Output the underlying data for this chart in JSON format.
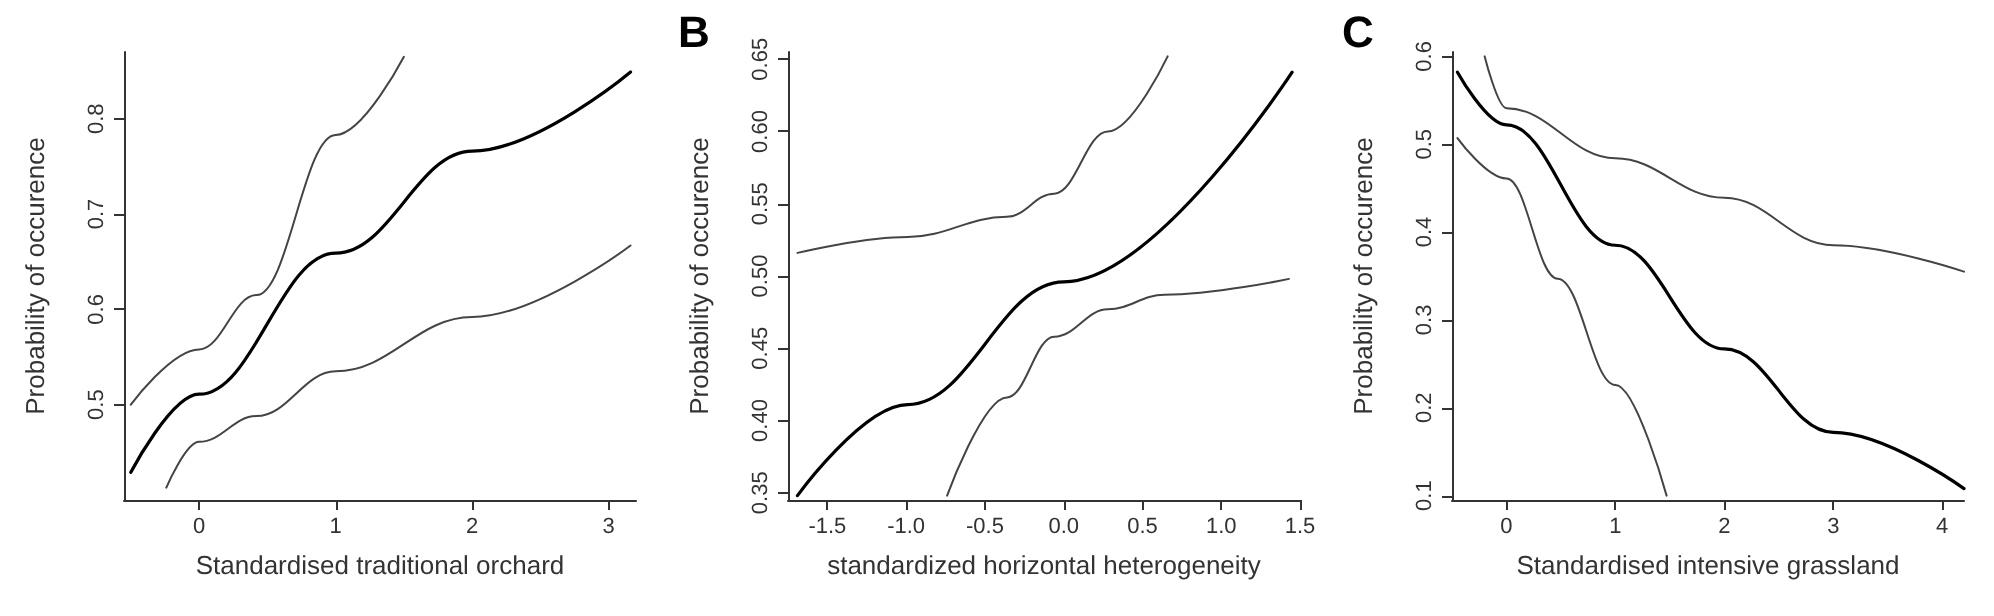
{
  "chart_data": [
    {
      "type": "line",
      "ylabel": "Probability of occurence",
      "xlabel": "Standardised traditional orchard",
      "xlim": [
        -0.55,
        3.2
      ],
      "ylim": [
        0.4,
        0.87
      ],
      "xticks": [
        0,
        1,
        2,
        3
      ],
      "yticks": [
        0.5,
        0.6,
        0.7,
        0.8
      ],
      "grid": false,
      "marker": "none",
      "line_style": "solid",
      "series": [
        {
          "color": "#000000",
          "x": [
            -0.5,
            0,
            1,
            2,
            3.16
          ],
          "values": [
            0.429,
            0.511,
            0.659,
            0.766,
            0.849
          ]
        },
        {
          "color": "#444444",
          "x": [
            -0.5,
            0,
            0.42,
            1,
            1.5
          ],
          "values": [
            0.5,
            0.558,
            0.615,
            0.783,
            0.865
          ]
        },
        {
          "color": "#444444",
          "x": [
            -0.24,
            0,
            0.42,
            1,
            2,
            3.16
          ],
          "values": [
            0.413,
            0.461,
            0.488,
            0.535,
            0.592,
            0.667
          ]
        }
      ]
    },
    {
      "type": "line",
      "title": "B",
      "ylabel": "Probability of occurence",
      "xlabel": "standardized horizontal heterogeneity",
      "xlim": [
        -1.75,
        1.5
      ],
      "ylim": [
        0.345,
        0.655
      ],
      "xticks": [
        -1.5,
        {
          "value": -1,
          "label": "-1.0"
        },
        -0.5,
        {
          "value": 0,
          "label": "0.0"
        },
        0.5,
        {
          "value": 1,
          "label": "1.0"
        },
        1.5
      ],
      "yticks": [
        0.35,
        {
          "value": 0.4,
          "label": "0.40"
        },
        0.45,
        {
          "value": 0.5,
          "label": "0.50"
        },
        0.55,
        {
          "value": 0.6,
          "label": "0.60"
        },
        0.65
      ],
      "grid": false,
      "marker": "none",
      "line_style": "solid",
      "series": [
        {
          "color": "#000000",
          "x": [
            -1.69,
            -0.99,
            0,
            1.45
          ],
          "values": [
            0.348,
            0.411,
            0.496,
            0.641
          ]
        },
        {
          "color": "#444444",
          "x": [
            -1.69,
            -0.99,
            -0.36,
            -0.06,
            0.28,
            0.66
          ],
          "values": [
            0.516,
            0.527,
            0.541,
            0.557,
            0.6,
            0.652
          ]
        },
        {
          "color": "#444444",
          "x": [
            -0.74,
            -0.36,
            -0.06,
            0.28,
            0.64,
            1.43
          ],
          "values": [
            0.348,
            0.416,
            0.458,
            0.477,
            0.487,
            0.498
          ]
        }
      ]
    },
    {
      "type": "line",
      "title": "C",
      "ylabel": "Probability of occurence",
      "xlabel": "Standardised intensive grassland",
      "xlim": [
        -0.5,
        4.2
      ],
      "ylim": [
        0.095,
        0.605
      ],
      "xticks": [
        0,
        1,
        2,
        3,
        4
      ],
      "yticks": [
        0.1,
        0.2,
        0.3,
        0.4,
        0.5,
        0.6
      ],
      "grid": false,
      "marker": "none",
      "line_style": "solid",
      "series": [
        {
          "color": "#000000",
          "x": [
            -0.45,
            0,
            1,
            2,
            3,
            4.2
          ],
          "values": [
            0.582,
            0.522,
            0.385,
            0.267,
            0.172,
            0.108
          ]
        },
        {
          "color": "#444444",
          "x": [
            -0.2,
            0,
            1,
            2,
            3,
            4.2
          ],
          "values": [
            0.6,
            0.541,
            0.484,
            0.439,
            0.385,
            0.355
          ]
        },
        {
          "color": "#444444",
          "x": [
            -0.45,
            0,
            0.47,
            1,
            1.47
          ],
          "values": [
            0.507,
            0.461,
            0.347,
            0.226,
            0.1
          ]
        }
      ]
    }
  ]
}
